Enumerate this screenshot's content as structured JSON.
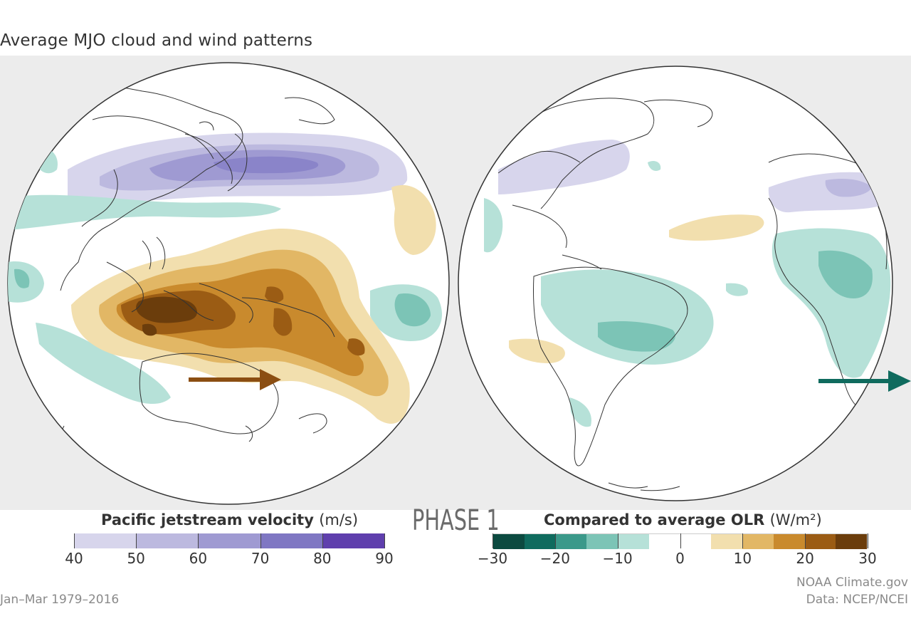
{
  "title": "Average MJO cloud and wind patterns",
  "phase_label": "PHASE 1",
  "legend_jet": {
    "title": "Pacific jetstream velocity",
    "unit": "(m/s)",
    "ticks": [
      "40",
      "50",
      "60",
      "70",
      "80",
      "90"
    ],
    "colors": [
      "#d7d5ec",
      "#bcb9df",
      "#9f9ad2",
      "#7f77c3",
      "#5f3fad"
    ]
  },
  "legend_olr": {
    "title": "Compared to average OLR",
    "unit": "(W/m²)",
    "ticks": [
      "−30",
      "−20",
      "−10",
      "0",
      "10",
      "20",
      "30"
    ],
    "colors": [
      "#0c4a40",
      "#0f6b5e",
      "#3b998a",
      "#7cc4b6",
      "#b6e1d8",
      "#ffffff",
      "#ffffff",
      "#f2dfae",
      "#e2b765",
      "#c98a2d",
      "#9b5c14",
      "#6b3d0c"
    ]
  },
  "period": "Jan–Mar 1979–2016",
  "credit_line1": "NOAA Climate.gov",
  "credit_line2": "Data:  NCEP/NCEI",
  "arrow_colors": {
    "left_globe": "#8b4e12",
    "right_globe": "#0f6b5e"
  }
}
